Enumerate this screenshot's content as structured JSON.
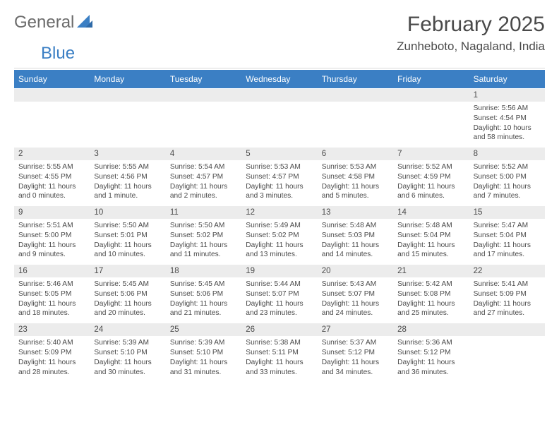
{
  "colors": {
    "header_bg": "#3b7fc4",
    "header_text": "#ffffff",
    "num_row_bg": "#ececec",
    "text": "#4a4a4a",
    "logo_gray": "#6b6b6b",
    "logo_blue": "#3b7fc4",
    "divider": "#d9d9d9"
  },
  "logo": {
    "part1": "General",
    "part2": "Blue"
  },
  "title": "February 2025",
  "location": "Zunheboto, Nagaland, India",
  "day_names": [
    "Sunday",
    "Monday",
    "Tuesday",
    "Wednesday",
    "Thursday",
    "Friday",
    "Saturday"
  ],
  "weeks": [
    [
      {
        "n": "",
        "sunrise": "",
        "sunset": "",
        "daylight1": "",
        "daylight2": ""
      },
      {
        "n": "",
        "sunrise": "",
        "sunset": "",
        "daylight1": "",
        "daylight2": ""
      },
      {
        "n": "",
        "sunrise": "",
        "sunset": "",
        "daylight1": "",
        "daylight2": ""
      },
      {
        "n": "",
        "sunrise": "",
        "sunset": "",
        "daylight1": "",
        "daylight2": ""
      },
      {
        "n": "",
        "sunrise": "",
        "sunset": "",
        "daylight1": "",
        "daylight2": ""
      },
      {
        "n": "",
        "sunrise": "",
        "sunset": "",
        "daylight1": "",
        "daylight2": ""
      },
      {
        "n": "1",
        "sunrise": "Sunrise: 5:56 AM",
        "sunset": "Sunset: 4:54 PM",
        "daylight1": "Daylight: 10 hours",
        "daylight2": "and 58 minutes."
      }
    ],
    [
      {
        "n": "2",
        "sunrise": "Sunrise: 5:55 AM",
        "sunset": "Sunset: 4:55 PM",
        "daylight1": "Daylight: 11 hours",
        "daylight2": "and 0 minutes."
      },
      {
        "n": "3",
        "sunrise": "Sunrise: 5:55 AM",
        "sunset": "Sunset: 4:56 PM",
        "daylight1": "Daylight: 11 hours",
        "daylight2": "and 1 minute."
      },
      {
        "n": "4",
        "sunrise": "Sunrise: 5:54 AM",
        "sunset": "Sunset: 4:57 PM",
        "daylight1": "Daylight: 11 hours",
        "daylight2": "and 2 minutes."
      },
      {
        "n": "5",
        "sunrise": "Sunrise: 5:53 AM",
        "sunset": "Sunset: 4:57 PM",
        "daylight1": "Daylight: 11 hours",
        "daylight2": "and 3 minutes."
      },
      {
        "n": "6",
        "sunrise": "Sunrise: 5:53 AM",
        "sunset": "Sunset: 4:58 PM",
        "daylight1": "Daylight: 11 hours",
        "daylight2": "and 5 minutes."
      },
      {
        "n": "7",
        "sunrise": "Sunrise: 5:52 AM",
        "sunset": "Sunset: 4:59 PM",
        "daylight1": "Daylight: 11 hours",
        "daylight2": "and 6 minutes."
      },
      {
        "n": "8",
        "sunrise": "Sunrise: 5:52 AM",
        "sunset": "Sunset: 5:00 PM",
        "daylight1": "Daylight: 11 hours",
        "daylight2": "and 7 minutes."
      }
    ],
    [
      {
        "n": "9",
        "sunrise": "Sunrise: 5:51 AM",
        "sunset": "Sunset: 5:00 PM",
        "daylight1": "Daylight: 11 hours",
        "daylight2": "and 9 minutes."
      },
      {
        "n": "10",
        "sunrise": "Sunrise: 5:50 AM",
        "sunset": "Sunset: 5:01 PM",
        "daylight1": "Daylight: 11 hours",
        "daylight2": "and 10 minutes."
      },
      {
        "n": "11",
        "sunrise": "Sunrise: 5:50 AM",
        "sunset": "Sunset: 5:02 PM",
        "daylight1": "Daylight: 11 hours",
        "daylight2": "and 11 minutes."
      },
      {
        "n": "12",
        "sunrise": "Sunrise: 5:49 AM",
        "sunset": "Sunset: 5:02 PM",
        "daylight1": "Daylight: 11 hours",
        "daylight2": "and 13 minutes."
      },
      {
        "n": "13",
        "sunrise": "Sunrise: 5:48 AM",
        "sunset": "Sunset: 5:03 PM",
        "daylight1": "Daylight: 11 hours",
        "daylight2": "and 14 minutes."
      },
      {
        "n": "14",
        "sunrise": "Sunrise: 5:48 AM",
        "sunset": "Sunset: 5:04 PM",
        "daylight1": "Daylight: 11 hours",
        "daylight2": "and 15 minutes."
      },
      {
        "n": "15",
        "sunrise": "Sunrise: 5:47 AM",
        "sunset": "Sunset: 5:04 PM",
        "daylight1": "Daylight: 11 hours",
        "daylight2": "and 17 minutes."
      }
    ],
    [
      {
        "n": "16",
        "sunrise": "Sunrise: 5:46 AM",
        "sunset": "Sunset: 5:05 PM",
        "daylight1": "Daylight: 11 hours",
        "daylight2": "and 18 minutes."
      },
      {
        "n": "17",
        "sunrise": "Sunrise: 5:45 AM",
        "sunset": "Sunset: 5:06 PM",
        "daylight1": "Daylight: 11 hours",
        "daylight2": "and 20 minutes."
      },
      {
        "n": "18",
        "sunrise": "Sunrise: 5:45 AM",
        "sunset": "Sunset: 5:06 PM",
        "daylight1": "Daylight: 11 hours",
        "daylight2": "and 21 minutes."
      },
      {
        "n": "19",
        "sunrise": "Sunrise: 5:44 AM",
        "sunset": "Sunset: 5:07 PM",
        "daylight1": "Daylight: 11 hours",
        "daylight2": "and 23 minutes."
      },
      {
        "n": "20",
        "sunrise": "Sunrise: 5:43 AM",
        "sunset": "Sunset: 5:07 PM",
        "daylight1": "Daylight: 11 hours",
        "daylight2": "and 24 minutes."
      },
      {
        "n": "21",
        "sunrise": "Sunrise: 5:42 AM",
        "sunset": "Sunset: 5:08 PM",
        "daylight1": "Daylight: 11 hours",
        "daylight2": "and 25 minutes."
      },
      {
        "n": "22",
        "sunrise": "Sunrise: 5:41 AM",
        "sunset": "Sunset: 5:09 PM",
        "daylight1": "Daylight: 11 hours",
        "daylight2": "and 27 minutes."
      }
    ],
    [
      {
        "n": "23",
        "sunrise": "Sunrise: 5:40 AM",
        "sunset": "Sunset: 5:09 PM",
        "daylight1": "Daylight: 11 hours",
        "daylight2": "and 28 minutes."
      },
      {
        "n": "24",
        "sunrise": "Sunrise: 5:39 AM",
        "sunset": "Sunset: 5:10 PM",
        "daylight1": "Daylight: 11 hours",
        "daylight2": "and 30 minutes."
      },
      {
        "n": "25",
        "sunrise": "Sunrise: 5:39 AM",
        "sunset": "Sunset: 5:10 PM",
        "daylight1": "Daylight: 11 hours",
        "daylight2": "and 31 minutes."
      },
      {
        "n": "26",
        "sunrise": "Sunrise: 5:38 AM",
        "sunset": "Sunset: 5:11 PM",
        "daylight1": "Daylight: 11 hours",
        "daylight2": "and 33 minutes."
      },
      {
        "n": "27",
        "sunrise": "Sunrise: 5:37 AM",
        "sunset": "Sunset: 5:12 PM",
        "daylight1": "Daylight: 11 hours",
        "daylight2": "and 34 minutes."
      },
      {
        "n": "28",
        "sunrise": "Sunrise: 5:36 AM",
        "sunset": "Sunset: 5:12 PM",
        "daylight1": "Daylight: 11 hours",
        "daylight2": "and 36 minutes."
      },
      {
        "n": "",
        "sunrise": "",
        "sunset": "",
        "daylight1": "",
        "daylight2": ""
      }
    ]
  ]
}
